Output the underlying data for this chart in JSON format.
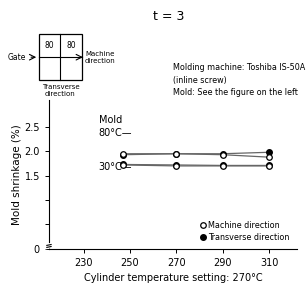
{
  "title": "t = 3",
  "xlabel": "Cylinder temperature setting: 270°C",
  "ylabel": "Mold shrinkage (%)",
  "xlim": [
    215,
    322
  ],
  "ylim": [
    0,
    3.05
  ],
  "xticks": [
    230,
    250,
    270,
    290,
    310
  ],
  "ytick_vals": [
    0,
    0.5,
    1.0,
    1.5,
    2.0,
    2.5
  ],
  "ytick_labels": [
    "0",
    "",
    "",
    "1.5",
    "2.0",
    "2.5"
  ],
  "annotation_text": "Molding machine: Toshiba IS-50A\n(inline screw)\nMold: See the figure on the left",
  "mold80_machine": [
    1.95,
    1.95,
    1.93,
    1.88
  ],
  "mold80_transverse": [
    1.93,
    1.95,
    1.95,
    1.98
  ],
  "mold30_machine": [
    1.72,
    1.7,
    1.7,
    1.7
  ],
  "mold30_transverse": [
    1.73,
    1.72,
    1.71,
    1.71
  ],
  "x_data": [
    247,
    270,
    290,
    310
  ],
  "line_color": "#666666"
}
